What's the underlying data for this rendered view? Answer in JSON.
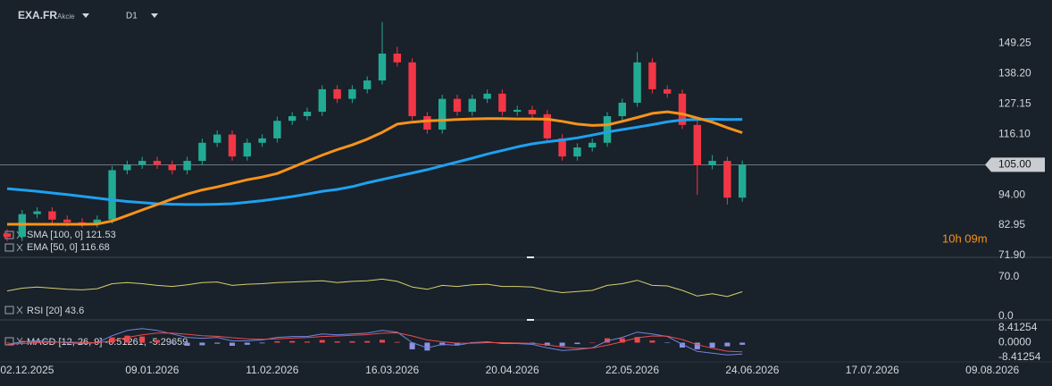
{
  "header": {
    "symbol": "EXA.FR",
    "instrument_type": "Akcie",
    "timeframe": "D1"
  },
  "countdown": "10h 09m",
  "chart_data": [
    {
      "type": "candlestick",
      "x": [
        0,
        3,
        6,
        9,
        12,
        15,
        18,
        21,
        24,
        27,
        30,
        33,
        36,
        39,
        42,
        45,
        48,
        51,
        54,
        57,
        60,
        63,
        66,
        69,
        72,
        75,
        78,
        81,
        84,
        87,
        90,
        93,
        96,
        99,
        102,
        105,
        108,
        111,
        114,
        117,
        120,
        123,
        126,
        129,
        132,
        135,
        138,
        141,
        144,
        147
      ],
      "open": [
        80,
        78.7,
        87,
        88,
        85,
        84,
        83.6,
        85,
        103,
        105,
        106.4,
        105,
        103,
        106.4,
        113,
        116,
        108,
        113,
        114.6,
        121,
        122.7,
        124.3,
        132.5,
        129,
        132.5,
        135.7,
        145.5,
        142.3,
        122.7,
        117.8,
        129,
        124.3,
        129,
        130.9,
        124.3,
        125,
        123.4,
        114.6,
        108,
        111.3,
        113,
        122.7,
        127.6,
        142.3,
        132.5,
        130.9,
        119.5,
        104.8,
        106.4,
        93
      ],
      "high": [
        81.5,
        88.5,
        89.5,
        89.5,
        86.5,
        85.5,
        86.5,
        104.5,
        106.5,
        107.9,
        107.9,
        106.5,
        107.9,
        114.5,
        117.5,
        117.5,
        114.5,
        116.1,
        122.5,
        124.2,
        125.8,
        134,
        134,
        134,
        137.2,
        157,
        148,
        143.8,
        124.2,
        130.5,
        130.5,
        130.5,
        132.4,
        132.4,
        126.5,
        126.5,
        124.9,
        116.1,
        112.8,
        114.5,
        124.2,
        129.1,
        146,
        143.8,
        134,
        132.4,
        121,
        108.5,
        107.9,
        106.5
      ],
      "low": [
        77.2,
        77.2,
        85.5,
        83.5,
        82.5,
        82.1,
        82.1,
        83.5,
        101.5,
        103.5,
        103.5,
        101.5,
        101.5,
        104.9,
        111.5,
        106.5,
        106.5,
        111.5,
        113.1,
        119.5,
        121.2,
        122.8,
        127.5,
        127.5,
        131,
        134.2,
        140.8,
        121.2,
        116.3,
        116.3,
        122.8,
        122.8,
        127.5,
        122.8,
        122.8,
        121.9,
        113.1,
        106.5,
        106.5,
        109.8,
        111.5,
        121.2,
        126.1,
        131,
        129.4,
        118,
        94,
        103.3,
        90.5,
        91.5
      ],
      "close": [
        78.7,
        87,
        88,
        85,
        84,
        83.6,
        85,
        103,
        105,
        106.4,
        105,
        103,
        106.4,
        113,
        116,
        108,
        113,
        114.6,
        121,
        122.7,
        124.3,
        132.5,
        129,
        132.5,
        135.7,
        145.5,
        142.3,
        122.7,
        117.8,
        129,
        124.3,
        129,
        130.9,
        124.3,
        125,
        123.4,
        114.6,
        108,
        111.3,
        113,
        122.7,
        127.6,
        142.3,
        132.5,
        130.9,
        119.5,
        104.8,
        106.4,
        93,
        105
      ],
      "up_color": "#22ab94",
      "down_color": "#f23645",
      "series": [
        {
          "name": "SMA [100, 0] 121.53",
          "color": "#1ea1f0",
          "values": [
            96.3,
            95.8,
            95.3,
            94.7,
            94.1,
            93.5,
            92.8,
            92.2,
            91.6,
            91.2,
            90.8,
            90.6,
            90.5,
            90.5,
            90.6,
            90.8,
            91.3,
            91.9,
            92.6,
            93.4,
            94.3,
            95.3,
            96,
            97,
            98.4,
            99.6,
            100.8,
            102,
            103.2,
            104.6,
            106,
            107.4,
            108.9,
            110.2,
            111.5,
            112.6,
            113.4,
            114,
            114.8,
            115.8,
            116.9,
            117.8,
            118.7,
            119.6,
            120.6,
            121.3,
            121.5,
            121.6,
            121.5,
            121.53
          ]
        },
        {
          "name": "EMA [50, 0] 116.68",
          "color": "#f7931a",
          "values": [
            83.3,
            83.3,
            83.3,
            83.3,
            83.3,
            83.3,
            83.4,
            84.5,
            86.5,
            88.5,
            90.5,
            92.5,
            94.3,
            95.8,
            96.9,
            98.2,
            99.5,
            100.5,
            101.8,
            104,
            106.3,
            108.5,
            110.5,
            112.2,
            114.3,
            116.8,
            119.8,
            120.5,
            121,
            121.2,
            121.5,
            121.7,
            121.8,
            121.8,
            121.7,
            121.7,
            121.6,
            120.8,
            119.8,
            119.3,
            119.5,
            120.8,
            122.2,
            123.7,
            124.3,
            123.5,
            122,
            120.5,
            118.5,
            116.68
          ]
        }
      ],
      "xlim": [
        0,
        198
      ],
      "ylim": [
        71.9,
        163.4
      ],
      "yticks": [
        {
          "value": 149.25,
          "label": "149.25"
        },
        {
          "value": 138.2,
          "label": "138.20"
        },
        {
          "value": 127.15,
          "label": "127.15"
        },
        {
          "value": 116.1,
          "label": "116.10"
        },
        {
          "value": 94,
          "label": "94.00"
        },
        {
          "value": 82.95,
          "label": "82.95"
        },
        {
          "value": 71.9,
          "label": "71.90"
        }
      ],
      "last_price": {
        "value": 105,
        "label": "105.00"
      }
    },
    {
      "type": "line",
      "x": [
        0,
        3,
        6,
        9,
        12,
        15,
        18,
        21,
        24,
        27,
        30,
        33,
        36,
        39,
        42,
        45,
        48,
        51,
        54,
        57,
        60,
        63,
        66,
        69,
        72,
        75,
        78,
        81,
        84,
        87,
        90,
        93,
        96,
        99,
        102,
        105,
        108,
        111,
        114,
        117,
        120,
        123,
        126,
        129,
        132,
        135,
        138,
        141,
        144,
        147
      ],
      "series": [
        {
          "name": "RSI [20] 43.6",
          "color": "#d6cf6e",
          "values": [
            45,
            50,
            52,
            50,
            48,
            47,
            49,
            58,
            60,
            58,
            55,
            53,
            56,
            60,
            61,
            55,
            57,
            58,
            60,
            61,
            62,
            63,
            60,
            62,
            63,
            66,
            62,
            52,
            48,
            55,
            53,
            56,
            57,
            53,
            53,
            52,
            46,
            42,
            44,
            46,
            55,
            58,
            64,
            55,
            54,
            46,
            36,
            40,
            35,
            43.6
          ]
        }
      ],
      "xlim": [
        0,
        198
      ],
      "ylim": [
        0,
        100
      ],
      "yticks": [
        {
          "value": 70,
          "label": "70.0"
        },
        {
          "value": 0,
          "label": "0.0"
        }
      ]
    },
    {
      "type": "macd",
      "title": "MACD [12, 26, 9] -6.51261, -5.29659",
      "x": [
        0,
        3,
        6,
        9,
        12,
        15,
        18,
        21,
        24,
        27,
        30,
        33,
        36,
        39,
        42,
        45,
        48,
        51,
        54,
        57,
        60,
        63,
        66,
        69,
        72,
        75,
        78,
        81,
        84,
        87,
        90,
        93,
        96,
        99,
        102,
        105,
        108,
        111,
        114,
        117,
        120,
        123,
        126,
        129,
        132,
        135,
        138,
        141,
        144,
        147
      ],
      "histogram": {
        "positive_color": "#f0464b",
        "negative_color": "#8c92e6",
        "values": [
          0,
          1,
          1,
          0.2,
          -0.3,
          -0.6,
          0,
          3,
          4,
          3.5,
          1.5,
          -0.5,
          -1.8,
          -1.5,
          -0.6,
          -1.8,
          -1.2,
          -0.4,
          0.8,
          0.9,
          0.6,
          1.5,
          0.7,
          0.8,
          0.9,
          1.6,
          0.4,
          -3.8,
          -4.5,
          -1.5,
          -1.2,
          0.3,
          0.5,
          -0.5,
          -0.3,
          -0.6,
          -1.7,
          -2,
          -0.8,
          0.1,
          2.5,
          2.5,
          3.2,
          1.2,
          -0.2,
          -2.8,
          -3.8,
          -2.8,
          -2.1,
          -1.21602
        ]
      },
      "series": [
        {
          "color": "#6f86e0",
          "values": [
            -1,
            0.5,
            1,
            0.5,
            0,
            -0.5,
            0,
            4,
            7,
            8,
            7,
            5,
            3,
            2.5,
            3,
            1,
            1,
            1.5,
            3,
            3.5,
            3.5,
            5,
            4.5,
            5,
            5.5,
            7,
            6,
            0,
            -3,
            -1,
            -1.5,
            0,
            0.5,
            -0.5,
            -0.5,
            -1,
            -3,
            -4.5,
            -4,
            -3,
            1,
            3,
            6,
            5,
            3.5,
            -1,
            -5,
            -6,
            -7,
            -6.51261
          ]
        },
        {
          "color": "#e84c4c",
          "values": [
            -1,
            -0.5,
            0,
            0.3,
            0.3,
            0.1,
            0,
            1,
            3,
            4.5,
            5.5,
            5.5,
            4.8,
            4,
            3.6,
            2.8,
            2.2,
            1.9,
            2.2,
            2.6,
            2.9,
            3.5,
            3.8,
            4.2,
            4.6,
            5.4,
            5.6,
            3.8,
            1.5,
            0.5,
            -0.3,
            -0.3,
            0,
            0,
            -0.2,
            -0.4,
            -1.3,
            -2.5,
            -3.2,
            -3.1,
            -1.5,
            0.5,
            2.8,
            3.8,
            3.7,
            1.8,
            -1.2,
            -3.2,
            -4.9,
            -5.29659
          ]
        }
      ],
      "xlim": [
        0,
        198
      ],
      "ylim": [
        -11,
        12
      ],
      "yticks": [
        8.41254,
        {
          "value": 0,
          "label": "0.0000"
        },
        -8.41254
      ],
      "xticks": [
        {
          "value": 4,
          "label": "02.12.2025"
        },
        {
          "value": 29,
          "label": "09.01.2026"
        },
        {
          "value": 53,
          "label": "11.02.2026"
        },
        {
          "value": 77,
          "label": "16.03.2026"
        },
        {
          "value": 101,
          "label": "20.04.2026"
        },
        {
          "value": 125,
          "label": "22.05.2026"
        },
        {
          "value": 149,
          "label": "24.06.2026"
        },
        {
          "value": 173,
          "label": "17.07.2026"
        },
        {
          "value": 197,
          "label": "09.08.2026"
        }
      ]
    }
  ]
}
